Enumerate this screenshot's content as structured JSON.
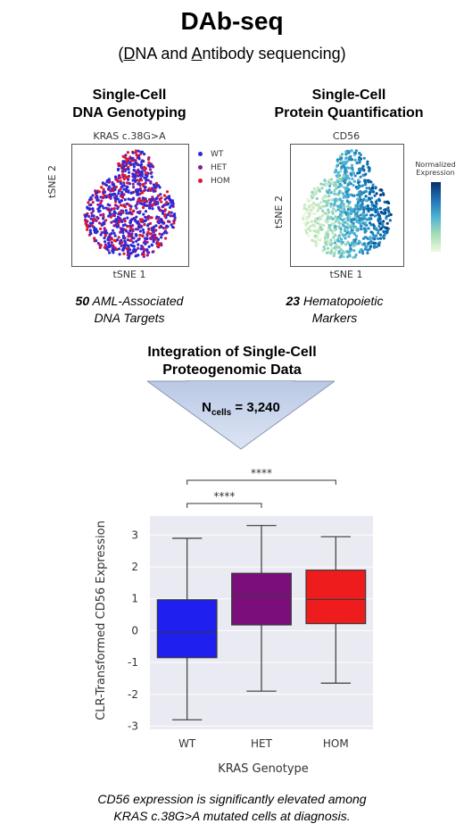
{
  "title": "DAb-seq",
  "subtitle": {
    "open": "(",
    "d": "D",
    "na_and": "NA and ",
    "a": "A",
    "ntibody": "ntibody sequencing)"
  },
  "left_panel": {
    "heading_line1": "Single-Cell",
    "heading_line2": "DNA Genotyping",
    "plot_title": "KRAS c.38G>A",
    "xlabel": "tSNE 1",
    "ylabel": "tSNE 2",
    "legend": [
      {
        "label": "WT",
        "color": "#2a2ad8"
      },
      {
        "label": "HET",
        "color": "#8a1a9a"
      },
      {
        "label": "HOM",
        "color": "#e0182a"
      }
    ],
    "caption_num": "50",
    "caption_rest1": " AML-Associated",
    "caption_line2": "DNA Targets"
  },
  "right_panel": {
    "heading_line1": "Single-Cell",
    "heading_line2": "Protein Quantification",
    "plot_title": "CD56",
    "xlabel": "tSNE 1",
    "ylabel": "tSNE 2",
    "colorbar_label_line1": "Normalized",
    "colorbar_label_line2": "Expression",
    "caption_num": "23",
    "caption_rest1": " Hematopoietic",
    "caption_line2": "Markers"
  },
  "integration": {
    "line1": "Integration of Single-Cell",
    "line2": "Proteogenomic Data",
    "ncells_prefix": "N",
    "ncells_sub": "cells",
    "ncells_value": " = 3,240"
  },
  "boxplot": {
    "ylabel": "CLR-Transformed CD56 Expression",
    "xlabel": "KRAS Genotype",
    "significance_top": "****",
    "significance_bottom": "****"
  },
  "chart_data": {
    "type": "box",
    "title": "",
    "xlabel": "KRAS Genotype",
    "ylabel": "CLR-Transformed CD56 Expression",
    "ylim": [
      -3.1,
      3.6
    ],
    "yticks": [
      -3,
      -2,
      -1,
      0,
      1,
      2,
      3
    ],
    "categories": [
      "WT",
      "HET",
      "HOM"
    ],
    "colors": [
      "#1f1ff0",
      "#7b0e7b",
      "#ee1c1c"
    ],
    "boxes": [
      {
        "category": "WT",
        "whisker_low": -2.8,
        "q1": -0.85,
        "median": -0.05,
        "q3": 0.97,
        "whisker_high": 2.9
      },
      {
        "category": "HET",
        "whisker_low": -1.9,
        "q1": 0.18,
        "median": 1.1,
        "q3": 1.8,
        "whisker_high": 3.3
      },
      {
        "category": "HOM",
        "whisker_low": -1.65,
        "q1": 0.22,
        "median": 0.98,
        "q3": 1.9,
        "whisker_high": 2.95
      }
    ],
    "grid": true
  },
  "footer": {
    "line1": "CD56 expression is significantly elevated among",
    "line2": "KRAS c.38G>A mutated cells at diagnosis."
  }
}
